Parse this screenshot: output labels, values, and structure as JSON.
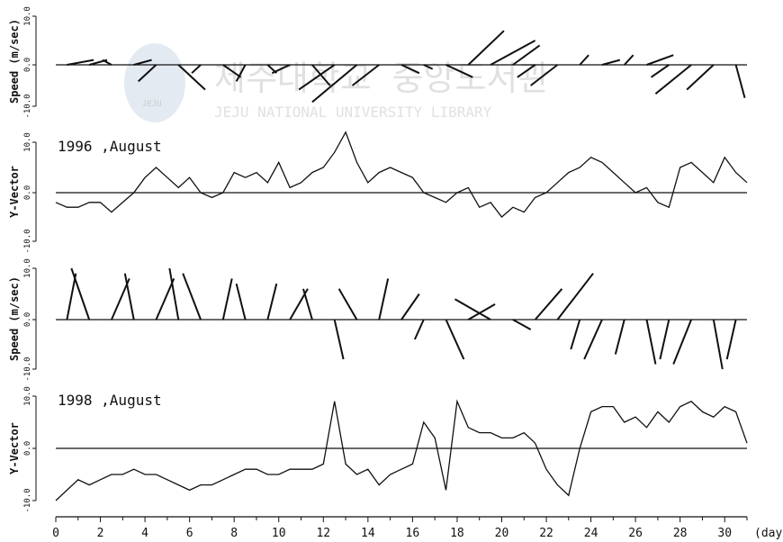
{
  "watermark": {
    "title": "제주대학교 중앙도서관",
    "subtitle": "JEJU NATIONAL UNIVERSITY LIBRARY",
    "logo_text": "JEJU"
  },
  "axis": {
    "x_unit": "(day)",
    "x_ticks": [
      "0",
      "2",
      "4",
      "6",
      "8",
      "10",
      "12",
      "14",
      "16",
      "18",
      "20",
      "22",
      "24",
      "26",
      "28",
      "30"
    ],
    "x_range": [
      0,
      31
    ]
  },
  "chart_data": [
    {
      "type": "line",
      "subtype": "stick-vector",
      "ylabel": "Speed (m/sec)",
      "yticks": [
        "10.0",
        "0.0",
        "-10.0"
      ],
      "ylim": [
        -10,
        10
      ],
      "note": "wind vectors, 1996 August",
      "series": [
        {
          "x": [
            0.5,
            1.5,
            2.5,
            3.5,
            4.5,
            5.5,
            6.5,
            7.5,
            8.5,
            9.5,
            10.5,
            11.5,
            12.5,
            13.5,
            14.5,
            15.5,
            16.5,
            17.5,
            18.5,
            19.5,
            20.5,
            21.5,
            22.5,
            23.5,
            24.5,
            25.5,
            26.5,
            27.5,
            28.5,
            29.5,
            30.5
          ],
          "u": [
            3,
            2,
            -1,
            2,
            -2,
            3,
            -1,
            2,
            -1,
            1,
            -2,
            2,
            -4,
            -5,
            -3,
            2,
            1,
            3,
            4,
            5,
            3,
            -2,
            -3,
            1,
            2,
            1,
            3,
            -2,
            -4,
            -3,
            1
          ],
          "v": [
            1,
            1,
            1,
            1,
            -4,
            -6,
            -2,
            -3,
            -4,
            -2,
            -2,
            -5,
            -6,
            -9,
            -5,
            -2,
            -1,
            -3,
            7,
            5,
            4,
            -3,
            -5,
            2,
            1,
            2,
            2,
            -3,
            -7,
            -6,
            -8
          ]
        }
      ]
    },
    {
      "type": "line",
      "title": "1996 ,August",
      "ylabel": "Y-Vector",
      "yticks": [
        "10.0",
        "0.0",
        "-10.0"
      ],
      "ylim": [
        -10,
        10
      ],
      "series": [
        {
          "x": [
            0,
            0.5,
            1,
            1.5,
            2,
            2.5,
            3,
            3.5,
            4,
            4.5,
            5,
            5.5,
            6,
            6.5,
            7,
            7.5,
            8,
            8.5,
            9,
            9.5,
            10,
            10.5,
            11,
            11.5,
            12,
            12.5,
            13,
            13.5,
            14,
            14.5,
            15,
            15.5,
            16,
            16.5,
            17,
            17.5,
            18,
            18.5,
            19,
            19.5,
            20,
            20.5,
            21,
            21.5,
            22,
            22.5,
            23,
            23.5,
            24,
            24.5,
            25,
            25.5,
            26,
            26.5,
            27,
            27.5,
            28,
            28.5,
            29,
            29.5,
            30,
            30.5,
            31
          ],
          "values": [
            -2,
            -3,
            -3,
            -2,
            -2,
            -4,
            -2,
            0,
            3,
            5,
            3,
            1,
            3,
            0,
            -1,
            0,
            4,
            3,
            4,
            2,
            6,
            1,
            2,
            4,
            5,
            8,
            12,
            6,
            2,
            4,
            5,
            4,
            3,
            0,
            -1,
            -2,
            0,
            1,
            -3,
            -2,
            -5,
            -3,
            -4,
            -1,
            0,
            2,
            4,
            5,
            7,
            6,
            4,
            2,
            0,
            1,
            -2,
            -3,
            5,
            6,
            4,
            2,
            7,
            4,
            2
          ]
        }
      ]
    },
    {
      "type": "line",
      "subtype": "stick-vector",
      "ylabel": "Speed (m/sec)",
      "yticks": [
        "10.0",
        "0.0",
        "-10.0"
      ],
      "ylim": [
        -10,
        10
      ],
      "note": "wind vectors, 1998 August",
      "series": [
        {
          "x": [
            0.5,
            1.5,
            2.5,
            3.5,
            4.5,
            5.5,
            6.5,
            7.5,
            8.5,
            9.5,
            10.5,
            11.5,
            12.5,
            13.5,
            14.5,
            15.5,
            16.5,
            17.5,
            18.5,
            19.5,
            20.5,
            21.5,
            22.5,
            23.5,
            24.5,
            25.5,
            26.5,
            27.5,
            28.5,
            29.5,
            30.5
          ],
          "u": [
            1,
            -2,
            2,
            -1,
            2,
            -1,
            -2,
            1,
            -1,
            1,
            2,
            -1,
            1,
            -2,
            1,
            2,
            -1,
            2,
            3,
            -4,
            2,
            3,
            4,
            -1,
            -2,
            -1,
            1,
            -1,
            -2,
            1,
            -1
          ],
          "v": [
            9,
            10,
            8,
            9,
            8,
            10,
            9,
            8,
            7,
            7,
            6,
            6,
            -8,
            6,
            8,
            5,
            -4,
            -8,
            3,
            4,
            -2,
            6,
            9,
            -6,
            -8,
            -7,
            -9,
            -8,
            -9,
            -10,
            -8
          ]
        }
      ]
    },
    {
      "type": "line",
      "title": "1998 ,August",
      "ylabel": "Y-Vector",
      "yticks": [
        "10.0",
        "0.0",
        "-10.0"
      ],
      "ylim": [
        -10,
        10
      ],
      "series": [
        {
          "x": [
            0,
            0.5,
            1,
            1.5,
            2,
            2.5,
            3,
            3.5,
            4,
            4.5,
            5,
            5.5,
            6,
            6.5,
            7,
            7.5,
            8,
            8.5,
            9,
            9.5,
            10,
            10.5,
            11,
            11.5,
            12,
            12.5,
            13,
            13.5,
            14,
            14.5,
            15,
            15.5,
            16,
            16.5,
            17,
            17.5,
            18,
            18.5,
            19,
            19.5,
            20,
            20.5,
            21,
            21.5,
            22,
            22.5,
            23,
            23.5,
            24,
            24.5,
            25,
            25.5,
            26,
            26.5,
            27,
            27.5,
            28,
            28.5,
            29,
            29.5,
            30,
            30.5,
            31
          ],
          "values": [
            -10,
            -8,
            -6,
            -7,
            -6,
            -5,
            -5,
            -4,
            -5,
            -5,
            -6,
            -7,
            -8,
            -7,
            -7,
            -6,
            -5,
            -4,
            -4,
            -5,
            -5,
            -4,
            -4,
            -4,
            -3,
            9,
            -3,
            -5,
            -4,
            -7,
            -5,
            -4,
            -3,
            5,
            2,
            -8,
            9,
            4,
            3,
            3,
            2,
            2,
            3,
            1,
            -4,
            -7,
            -9,
            0,
            7,
            8,
            8,
            5,
            6,
            4,
            7,
            5,
            8,
            9,
            7,
            6,
            8,
            7,
            1
          ]
        }
      ]
    }
  ]
}
